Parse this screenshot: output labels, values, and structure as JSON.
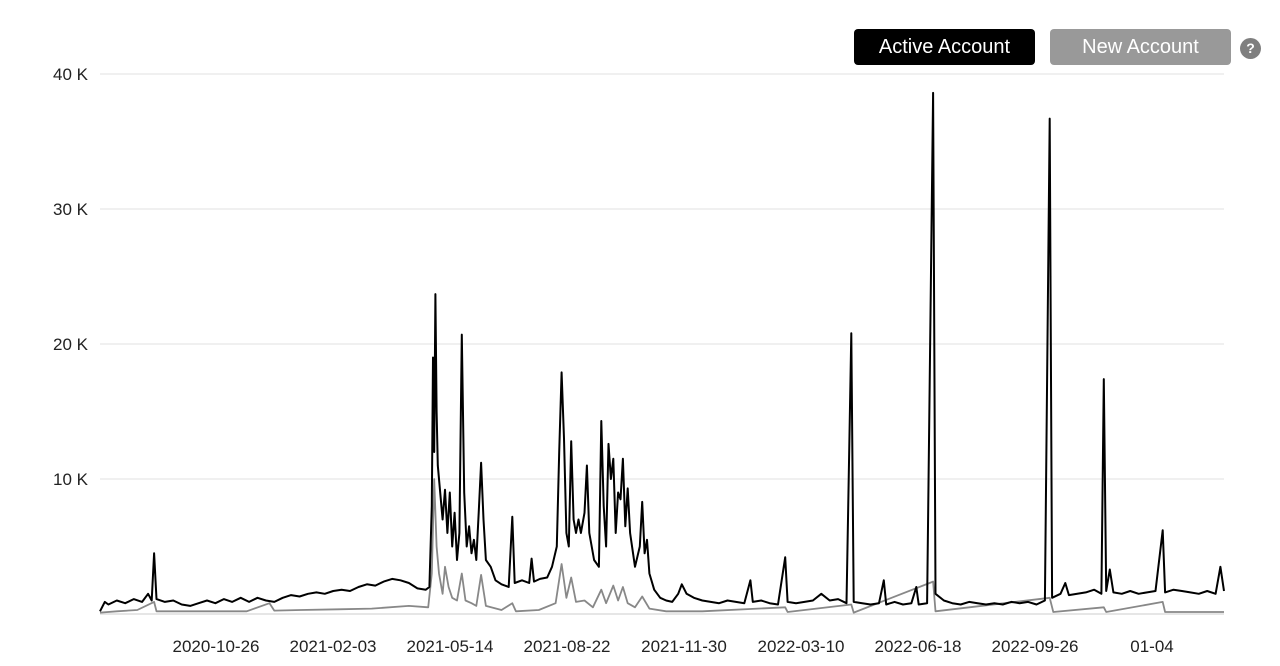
{
  "legend": {
    "active_label": "Active Account",
    "new_label": "New Account",
    "help_label": "?"
  },
  "chart_data": {
    "type": "line",
    "ylim": [
      0,
      40000
    ],
    "y_ticks": [
      {
        "value": 10000,
        "label": "10 K"
      },
      {
        "value": 20000,
        "label": "20 K"
      },
      {
        "value": 30000,
        "label": "30 K"
      },
      {
        "value": 40000,
        "label": "40 K"
      }
    ],
    "x_ticks": [
      "2020-10-26",
      "2021-02-03",
      "2021-05-14",
      "2021-08-22",
      "2021-11-30",
      "2022-03-10",
      "2022-06-18",
      "2022-09-26",
      "01-04"
    ],
    "x_range": [
      "2020-08-01",
      "2023-02-22"
    ],
    "grid": true,
    "series": [
      {
        "name": "Active Account",
        "color": "#000000",
        "points": [
          [
            "2020-08-01",
            200
          ],
          [
            "2020-08-05",
            900
          ],
          [
            "2020-08-08",
            700
          ],
          [
            "2020-08-15",
            1000
          ],
          [
            "2020-08-22",
            800
          ],
          [
            "2020-08-29",
            1100
          ],
          [
            "2020-09-05",
            900
          ],
          [
            "2020-09-10",
            1500
          ],
          [
            "2020-09-13",
            1000
          ],
          [
            "2020-09-15",
            4500
          ],
          [
            "2020-09-17",
            1100
          ],
          [
            "2020-09-24",
            900
          ],
          [
            "2020-10-01",
            1000
          ],
          [
            "2020-10-08",
            700
          ],
          [
            "2020-10-15",
            600
          ],
          [
            "2020-10-22",
            800
          ],
          [
            "2020-10-29",
            1000
          ],
          [
            "2020-11-05",
            800
          ],
          [
            "2020-11-12",
            1100
          ],
          [
            "2020-11-19",
            900
          ],
          [
            "2020-11-26",
            1200
          ],
          [
            "2020-12-03",
            900
          ],
          [
            "2020-12-10",
            1200
          ],
          [
            "2020-12-17",
            1000
          ],
          [
            "2020-12-24",
            900
          ],
          [
            "2020-12-31",
            1200
          ],
          [
            "2021-01-07",
            1400
          ],
          [
            "2021-01-14",
            1300
          ],
          [
            "2021-01-21",
            1500
          ],
          [
            "2021-01-28",
            1600
          ],
          [
            "2021-02-04",
            1500
          ],
          [
            "2021-02-11",
            1700
          ],
          [
            "2021-02-18",
            1800
          ],
          [
            "2021-02-25",
            1700
          ],
          [
            "2021-03-04",
            2000
          ],
          [
            "2021-03-11",
            2200
          ],
          [
            "2021-03-18",
            2100
          ],
          [
            "2021-03-25",
            2400
          ],
          [
            "2021-04-01",
            2600
          ],
          [
            "2021-04-08",
            2500
          ],
          [
            "2021-04-15",
            2300
          ],
          [
            "2021-04-22",
            1900
          ],
          [
            "2021-04-29",
            1800
          ],
          [
            "2021-05-02",
            2000
          ],
          [
            "2021-05-04",
            8000
          ],
          [
            "2021-05-05",
            19000
          ],
          [
            "2021-05-06",
            12000
          ],
          [
            "2021-05-07",
            23700
          ],
          [
            "2021-05-08",
            15000
          ],
          [
            "2021-05-09",
            11000
          ],
          [
            "2021-05-11",
            9000
          ],
          [
            "2021-05-13",
            7000
          ],
          [
            "2021-05-15",
            9200
          ],
          [
            "2021-05-17",
            6000
          ],
          [
            "2021-05-19",
            9000
          ],
          [
            "2021-05-21",
            5000
          ],
          [
            "2021-05-23",
            7500
          ],
          [
            "2021-05-25",
            4000
          ],
          [
            "2021-05-27",
            6000
          ],
          [
            "2021-05-29",
            20700
          ],
          [
            "2021-05-31",
            9000
          ],
          [
            "2021-06-02",
            5000
          ],
          [
            "2021-06-04",
            6500
          ],
          [
            "2021-06-06",
            4500
          ],
          [
            "2021-06-08",
            5500
          ],
          [
            "2021-06-10",
            4000
          ],
          [
            "2021-06-12",
            7500
          ],
          [
            "2021-06-14",
            11200
          ],
          [
            "2021-06-16",
            7000
          ],
          [
            "2021-06-18",
            4000
          ],
          [
            "2021-06-22",
            3500
          ],
          [
            "2021-06-26",
            2500
          ],
          [
            "2021-07-01",
            2200
          ],
          [
            "2021-07-07",
            2000
          ],
          [
            "2021-07-10",
            7200
          ],
          [
            "2021-07-12",
            2300
          ],
          [
            "2021-07-18",
            2500
          ],
          [
            "2021-07-24",
            2300
          ],
          [
            "2021-07-26",
            4100
          ],
          [
            "2021-07-28",
            2400
          ],
          [
            "2021-08-02",
            2600
          ],
          [
            "2021-08-08",
            2700
          ],
          [
            "2021-08-12",
            3500
          ],
          [
            "2021-08-16",
            5000
          ],
          [
            "2021-08-18",
            12000
          ],
          [
            "2021-08-20",
            17900
          ],
          [
            "2021-08-22",
            13000
          ],
          [
            "2021-08-24",
            6000
          ],
          [
            "2021-08-26",
            5000
          ],
          [
            "2021-08-28",
            12800
          ],
          [
            "2021-08-30",
            7000
          ],
          [
            "2021-09-01",
            6000
          ],
          [
            "2021-09-03",
            7000
          ],
          [
            "2021-09-05",
            6000
          ],
          [
            "2021-09-08",
            7500
          ],
          [
            "2021-09-10",
            11000
          ],
          [
            "2021-09-12",
            6000
          ],
          [
            "2021-09-16",
            4000
          ],
          [
            "2021-09-20",
            3500
          ],
          [
            "2021-09-22",
            14300
          ],
          [
            "2021-09-24",
            8000
          ],
          [
            "2021-09-26",
            5000
          ],
          [
            "2021-09-28",
            12600
          ],
          [
            "2021-09-30",
            10000
          ],
          [
            "2021-10-02",
            11500
          ],
          [
            "2021-10-04",
            6000
          ],
          [
            "2021-10-06",
            9000
          ],
          [
            "2021-10-08",
            8500
          ],
          [
            "2021-10-10",
            11500
          ],
          [
            "2021-10-12",
            6500
          ],
          [
            "2021-10-14",
            9300
          ],
          [
            "2021-10-16",
            6000
          ],
          [
            "2021-10-20",
            3500
          ],
          [
            "2021-10-24",
            5000
          ],
          [
            "2021-10-26",
            8300
          ],
          [
            "2021-10-28",
            4500
          ],
          [
            "2021-10-30",
            5500
          ],
          [
            "2021-11-01",
            3000
          ],
          [
            "2021-11-05",
            1800
          ],
          [
            "2021-11-10",
            1200
          ],
          [
            "2021-11-15",
            1000
          ],
          [
            "2021-11-20",
            900
          ],
          [
            "2021-11-25",
            1500
          ],
          [
            "2021-11-28",
            2200
          ],
          [
            "2021-12-02",
            1500
          ],
          [
            "2021-12-08",
            1200
          ],
          [
            "2021-12-15",
            1000
          ],
          [
            "2021-12-22",
            900
          ],
          [
            "2021-12-29",
            800
          ],
          [
            "2022-01-05",
            1000
          ],
          [
            "2022-01-12",
            900
          ],
          [
            "2022-01-19",
            800
          ],
          [
            "2022-01-24",
            2500
          ],
          [
            "2022-01-26",
            900
          ],
          [
            "2022-02-02",
            1000
          ],
          [
            "2022-02-09",
            800
          ],
          [
            "2022-02-16",
            700
          ],
          [
            "2022-02-22",
            4200
          ],
          [
            "2022-02-24",
            900
          ],
          [
            "2022-03-03",
            800
          ],
          [
            "2022-03-10",
            900
          ],
          [
            "2022-03-17",
            1000
          ],
          [
            "2022-03-24",
            1500
          ],
          [
            "2022-03-31",
            1000
          ],
          [
            "2022-04-07",
            1100
          ],
          [
            "2022-04-14",
            800
          ],
          [
            "2022-04-18",
            20800
          ],
          [
            "2022-04-20",
            900
          ],
          [
            "2022-04-27",
            800
          ],
          [
            "2022-05-04",
            700
          ],
          [
            "2022-05-11",
            800
          ],
          [
            "2022-05-15",
            2500
          ],
          [
            "2022-05-17",
            700
          ],
          [
            "2022-05-24",
            900
          ],
          [
            "2022-05-31",
            700
          ],
          [
            "2022-06-07",
            800
          ],
          [
            "2022-06-11",
            2000
          ],
          [
            "2022-06-13",
            700
          ],
          [
            "2022-06-20",
            800
          ],
          [
            "2022-06-25",
            38600
          ],
          [
            "2022-06-27",
            1500
          ],
          [
            "2022-07-04",
            1000
          ],
          [
            "2022-07-11",
            800
          ],
          [
            "2022-07-18",
            700
          ],
          [
            "2022-07-25",
            900
          ],
          [
            "2022-08-01",
            800
          ],
          [
            "2022-08-08",
            700
          ],
          [
            "2022-08-15",
            800
          ],
          [
            "2022-08-22",
            700
          ],
          [
            "2022-08-29",
            900
          ],
          [
            "2022-09-05",
            800
          ],
          [
            "2022-09-12",
            900
          ],
          [
            "2022-09-19",
            700
          ],
          [
            "2022-09-26",
            1000
          ],
          [
            "2022-09-30",
            36700
          ],
          [
            "2022-10-02",
            1200
          ],
          [
            "2022-10-09",
            1500
          ],
          [
            "2022-10-13",
            2300
          ],
          [
            "2022-10-16",
            1400
          ],
          [
            "2022-10-23",
            1500
          ],
          [
            "2022-10-30",
            1600
          ],
          [
            "2022-11-06",
            1800
          ],
          [
            "2022-11-12",
            1500
          ],
          [
            "2022-11-14",
            17400
          ],
          [
            "2022-11-16",
            1700
          ],
          [
            "2022-11-19",
            3300
          ],
          [
            "2022-11-22",
            1600
          ],
          [
            "2022-11-29",
            1500
          ],
          [
            "2022-12-06",
            1700
          ],
          [
            "2022-12-13",
            1500
          ],
          [
            "2022-12-20",
            1600
          ],
          [
            "2022-12-27",
            1700
          ],
          [
            "2023-01-02",
            6200
          ],
          [
            "2023-01-04",
            1600
          ],
          [
            "2023-01-11",
            1800
          ],
          [
            "2023-01-18",
            1700
          ],
          [
            "2023-01-25",
            1600
          ],
          [
            "2023-02-01",
            1500
          ],
          [
            "2023-02-08",
            1700
          ],
          [
            "2023-02-15",
            1500
          ],
          [
            "2023-02-19",
            3500
          ],
          [
            "2023-02-22",
            1700
          ]
        ]
      },
      {
        "name": "New Account",
        "color": "#888888",
        "points": [
          [
            "2020-08-01",
            100
          ],
          [
            "2020-08-15",
            200
          ],
          [
            "2020-09-01",
            300
          ],
          [
            "2020-09-15",
            900
          ],
          [
            "2020-09-17",
            200
          ],
          [
            "2020-10-01",
            200
          ],
          [
            "2020-11-01",
            200
          ],
          [
            "2020-12-01",
            200
          ],
          [
            "2020-12-20",
            800
          ],
          [
            "2020-12-24",
            250
          ],
          [
            "2021-01-15",
            300
          ],
          [
            "2021-02-15",
            350
          ],
          [
            "2021-03-15",
            400
          ],
          [
            "2021-04-15",
            600
          ],
          [
            "2021-05-01",
            500
          ],
          [
            "2021-05-04",
            3000
          ],
          [
            "2021-05-06",
            10000
          ],
          [
            "2021-05-08",
            5000
          ],
          [
            "2021-05-10",
            3000
          ],
          [
            "2021-05-13",
            1500
          ],
          [
            "2021-05-15",
            3500
          ],
          [
            "2021-05-18",
            2000
          ],
          [
            "2021-05-21",
            1200
          ],
          [
            "2021-05-25",
            1000
          ],
          [
            "2021-05-29",
            3000
          ],
          [
            "2021-06-01",
            1000
          ],
          [
            "2021-06-06",
            800
          ],
          [
            "2021-06-10",
            600
          ],
          [
            "2021-06-14",
            2900
          ],
          [
            "2021-06-18",
            600
          ],
          [
            "2021-07-01",
            300
          ],
          [
            "2021-07-10",
            800
          ],
          [
            "2021-07-13",
            200
          ],
          [
            "2021-08-01",
            300
          ],
          [
            "2021-08-15",
            800
          ],
          [
            "2021-08-20",
            3700
          ],
          [
            "2021-08-24",
            1200
          ],
          [
            "2021-08-28",
            2700
          ],
          [
            "2021-09-01",
            900
          ],
          [
            "2021-09-08",
            1000
          ],
          [
            "2021-09-15",
            500
          ],
          [
            "2021-09-22",
            1800
          ],
          [
            "2021-09-26",
            800
          ],
          [
            "2021-10-02",
            2100
          ],
          [
            "2021-10-06",
            1000
          ],
          [
            "2021-10-10",
            2000
          ],
          [
            "2021-10-14",
            800
          ],
          [
            "2021-10-20",
            500
          ],
          [
            "2021-10-26",
            1300
          ],
          [
            "2021-11-01",
            400
          ],
          [
            "2021-11-15",
            200
          ],
          [
            "2021-12-15",
            200
          ],
          [
            "2022-02-22",
            500
          ],
          [
            "2022-02-24",
            150
          ],
          [
            "2022-04-18",
            700
          ],
          [
            "2022-04-20",
            100
          ],
          [
            "2022-06-25",
            2400
          ],
          [
            "2022-06-27",
            200
          ],
          [
            "2022-09-30",
            1200
          ],
          [
            "2022-10-03",
            150
          ],
          [
            "2022-11-14",
            500
          ],
          [
            "2022-11-16",
            150
          ],
          [
            "2023-01-02",
            900
          ],
          [
            "2023-01-04",
            150
          ],
          [
            "2023-02-22",
            150
          ]
        ]
      }
    ]
  }
}
